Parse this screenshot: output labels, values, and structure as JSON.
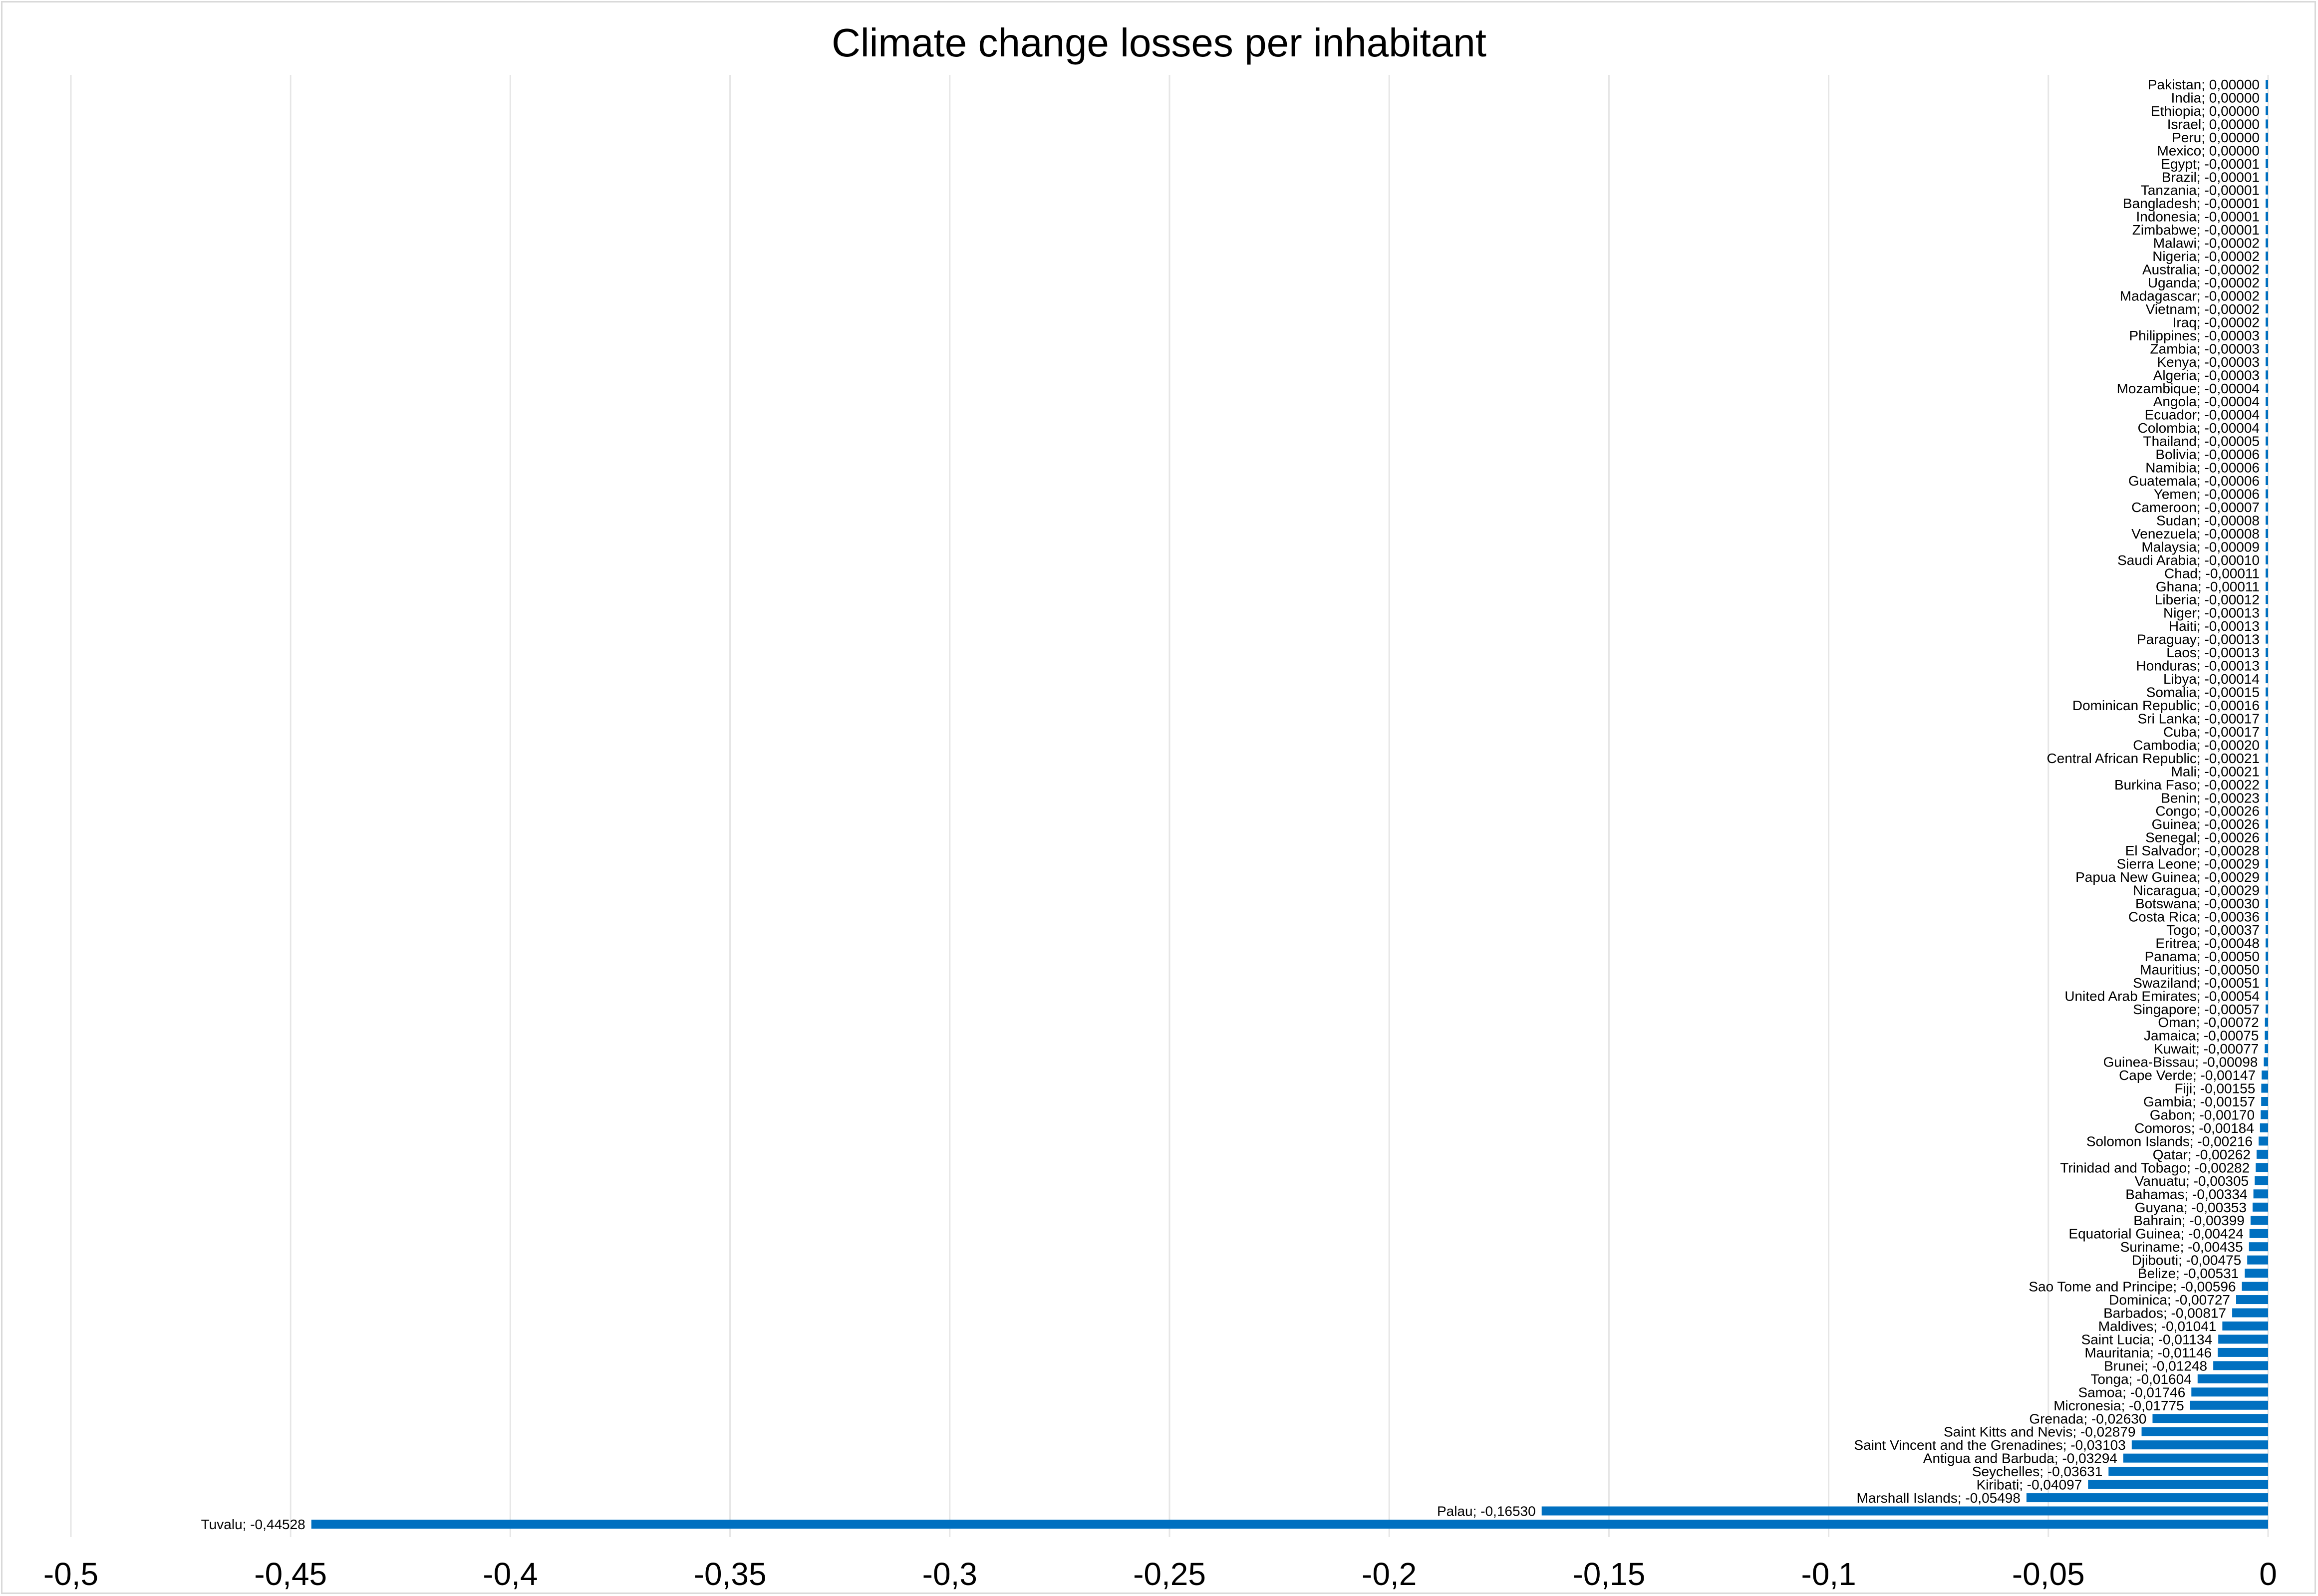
{
  "chart_data": {
    "type": "bar",
    "orientation": "horizontal",
    "title": "Climate change losses per inhabitant",
    "xlabel": "",
    "ylabel": "",
    "xlim": [
      -0.5,
      0
    ],
    "ticks": [
      -0.5,
      -0.45,
      -0.4,
      -0.35,
      -0.3,
      -0.25,
      -0.2,
      -0.15,
      -0.1,
      -0.05,
      0
    ],
    "tick_labels": [
      "-0,5",
      "-0,45",
      "-0,4",
      "-0,35",
      "-0,3",
      "-0,25",
      "-0,2",
      "-0,15",
      "-0,1",
      "-0,05",
      "0"
    ],
    "grid": "vertical",
    "bar_color": "#0070c0",
    "data_label_format": "Category; value",
    "categories": [
      "Pakistan",
      "India",
      "Ethiopia",
      "Israel",
      "Peru",
      "Mexico",
      "Egypt",
      "Brazil",
      "Tanzania",
      "Bangladesh",
      "Indonesia",
      "Zimbabwe",
      "Malawi",
      "Nigeria",
      "Australia",
      "Uganda",
      "Madagascar",
      "Vietnam",
      "Iraq",
      "Philippines",
      "Zambia",
      "Kenya",
      "Algeria",
      "Mozambique",
      "Angola",
      "Ecuador",
      "Colombia",
      "Thailand",
      "Bolivia",
      "Namibia",
      "Guatemala",
      "Yemen",
      "Cameroon",
      "Sudan",
      "Venezuela",
      "Malaysia",
      "Saudi Arabia",
      "Chad",
      "Ghana",
      "Liberia",
      "Niger",
      "Haiti",
      "Paraguay",
      "Laos",
      "Honduras",
      "Libya",
      "Somalia",
      "Dominican Republic",
      "Sri Lanka",
      "Cuba",
      "Cambodia",
      "Central African Republic",
      "Mali",
      "Burkina Faso",
      "Benin",
      "Congo",
      "Guinea",
      "Senegal",
      "El Salvador",
      "Sierra Leone",
      "Papua New Guinea",
      "Nicaragua",
      "Botswana",
      "Costa Rica",
      "Togo",
      "Eritrea",
      "Panama",
      "Mauritius",
      "Swaziland",
      "United Arab Emirates",
      "Singapore",
      "Oman",
      "Jamaica",
      "Kuwait",
      "Guinea-Bissau",
      "Cape Verde",
      "Fiji",
      "Gambia",
      "Gabon",
      "Comoros",
      "Solomon Islands",
      "Qatar",
      "Trinidad and Tobago",
      "Vanuatu",
      "Bahamas",
      "Guyana",
      "Bahrain",
      "Equatorial Guinea",
      "Suriname",
      "Djibouti",
      "Belize",
      "Sao Tome and Principe",
      "Dominica",
      "Barbados",
      "Maldives",
      "Saint Lucia",
      "Mauritania",
      "Brunei",
      "Tonga",
      "Samoa",
      "Micronesia",
      "Grenada",
      "Saint Kitts and Nevis",
      "Saint Vincent and the Grenadines",
      "Antigua and Barbuda",
      "Seychelles",
      "Kiribati",
      "Marshall Islands",
      "Palau",
      "Tuvalu"
    ],
    "values": [
      0,
      0,
      0,
      0,
      0,
      0,
      -1e-05,
      -1e-05,
      -1e-05,
      -1e-05,
      -1e-05,
      -1e-05,
      -2e-05,
      -2e-05,
      -2e-05,
      -2e-05,
      -2e-05,
      -2e-05,
      -2e-05,
      -3e-05,
      -3e-05,
      -3e-05,
      -3e-05,
      -4e-05,
      -4e-05,
      -4e-05,
      -4e-05,
      -5e-05,
      -6e-05,
      -6e-05,
      -6e-05,
      -6e-05,
      -7e-05,
      -8e-05,
      -8e-05,
      -9e-05,
      -0.0001,
      -0.00011,
      -0.00011,
      -0.00012,
      -0.00013,
      -0.00013,
      -0.00013,
      -0.00013,
      -0.00013,
      -0.00014,
      -0.00015,
      -0.00016,
      -0.00017,
      -0.00017,
      -0.0002,
      -0.00021,
      -0.00021,
      -0.00022,
      -0.00023,
      -0.00026,
      -0.00026,
      -0.00026,
      -0.00028,
      -0.00029,
      -0.00029,
      -0.00029,
      -0.0003,
      -0.00036,
      -0.00037,
      -0.00048,
      -0.0005,
      -0.0005,
      -0.00051,
      -0.00054,
      -0.00057,
      -0.00072,
      -0.00075,
      -0.00077,
      -0.00098,
      -0.00147,
      -0.00155,
      -0.00157,
      -0.0017,
      -0.00184,
      -0.00216,
      -0.00262,
      -0.00282,
      -0.00305,
      -0.00334,
      -0.00353,
      -0.00399,
      -0.00424,
      -0.00435,
      -0.00475,
      -0.00531,
      -0.00596,
      -0.00727,
      -0.00817,
      -0.01041,
      -0.01134,
      -0.01146,
      -0.01248,
      -0.01604,
      -0.01746,
      -0.01775,
      -0.0263,
      -0.02879,
      -0.03103,
      -0.03294,
      -0.03631,
      -0.04097,
      -0.05498,
      -0.1653,
      -0.44528
    ]
  }
}
